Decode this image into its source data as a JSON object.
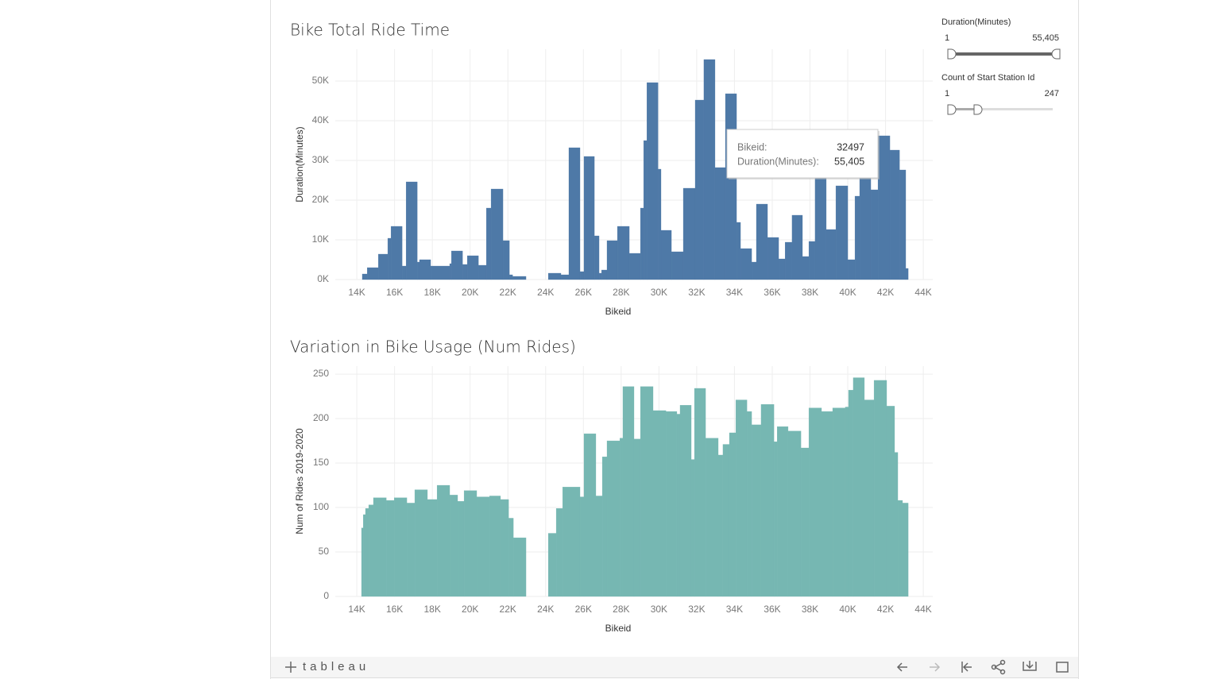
{
  "chart_data": [
    {
      "type": "histogram",
      "title": "Bike Total Ride Time",
      "x_label": "Bikeid",
      "y_label": "Duration(Minutes)",
      "color": "#4e79a7",
      "grid": true,
      "xlim": [
        12860,
        44500
      ],
      "xticks": [
        {
          "value": 14000,
          "label": "14K"
        },
        {
          "value": 16000,
          "label": "16K"
        },
        {
          "value": 18000,
          "label": "18K"
        },
        {
          "value": 20000,
          "label": "20K"
        },
        {
          "value": 22000,
          "label": "22K"
        },
        {
          "value": 24000,
          "label": "24K"
        },
        {
          "value": 26000,
          "label": "26K"
        },
        {
          "value": 28000,
          "label": "28K"
        },
        {
          "value": 30000,
          "label": "30K"
        },
        {
          "value": 32000,
          "label": "32K"
        },
        {
          "value": 34000,
          "label": "34K"
        },
        {
          "value": 36000,
          "label": "36K"
        },
        {
          "value": 38000,
          "label": "38K"
        },
        {
          "value": 40000,
          "label": "40K"
        },
        {
          "value": 42000,
          "label": "42K"
        },
        {
          "value": 44000,
          "label": "44K"
        }
      ],
      "ylim": [
        0,
        58000
      ],
      "yticks": [
        {
          "value": 0,
          "label": "0K"
        },
        {
          "value": 10000,
          "label": "10K"
        },
        {
          "value": 20000,
          "label": "20K"
        },
        {
          "value": 30000,
          "label": "30K"
        },
        {
          "value": 40000,
          "label": "40K"
        },
        {
          "value": 50000,
          "label": "50K"
        }
      ],
      "bins": [
        14290,
        14550,
        15140,
        15640,
        15810,
        16400,
        16610,
        17200,
        17320,
        17910,
        18920,
        19010,
        19600,
        19850,
        20440,
        20860,
        21110,
        21740,
        22080,
        22250,
        22960,
        24140,
        24810,
        25230,
        25820,
        26030,
        26580,
        26830,
        26960,
        27250,
        27800,
        28430,
        29020,
        29190,
        29360,
        29950,
        30110,
        30660,
        31290,
        31920,
        32380,
        32970,
        33520,
        34110,
        34320,
        34910,
        35160,
        35750,
        36340,
        36680,
        37050,
        37600,
        37940,
        38270,
        38860,
        39370,
        40000,
        40380,
        40630,
        41220,
        41600,
        42230,
        42740,
        43070,
        43200
      ],
      "values": [
        1400,
        3000,
        6400,
        10400,
        13400,
        3400,
        24600,
        4400,
        5000,
        3400,
        4000,
        7200,
        3800,
        6000,
        3600,
        18000,
        22800,
        9800,
        1200,
        800,
        null,
        1600,
        1200,
        33200,
        2000,
        31000,
        11000,
        1600,
        2400,
        9800,
        13400,
        6600,
        18000,
        35000,
        49600,
        27800,
        12400,
        7000,
        23000,
        45200,
        55405,
        28200,
        46800,
        14400,
        7800,
        4400,
        19000,
        10600,
        5200,
        9400,
        16200,
        5800,
        9600,
        28000,
        12600,
        23600,
        5000,
        21000,
        30400,
        22600,
        36200,
        32600,
        27600,
        2800
      ]
    },
    {
      "type": "histogram",
      "title": "Variation in Bike Usage (Num Rides)",
      "x_label": "Bikeid",
      "y_label": "Num of Rides 2019-2020",
      "color": "#76b7b2",
      "grid": true,
      "xlim": [
        12860,
        44500
      ],
      "xticks": [
        {
          "value": 14000,
          "label": "14K"
        },
        {
          "value": 16000,
          "label": "16K"
        },
        {
          "value": 18000,
          "label": "18K"
        },
        {
          "value": 20000,
          "label": "20K"
        },
        {
          "value": 22000,
          "label": "22K"
        },
        {
          "value": 24000,
          "label": "24K"
        },
        {
          "value": 26000,
          "label": "26K"
        },
        {
          "value": 28000,
          "label": "28K"
        },
        {
          "value": 30000,
          "label": "30K"
        },
        {
          "value": 32000,
          "label": "32K"
        },
        {
          "value": 34000,
          "label": "34K"
        },
        {
          "value": 36000,
          "label": "36K"
        },
        {
          "value": 38000,
          "label": "38K"
        },
        {
          "value": 40000,
          "label": "40K"
        },
        {
          "value": 42000,
          "label": "42K"
        },
        {
          "value": 44000,
          "label": "44K"
        }
      ],
      "ylim": [
        0,
        259
      ],
      "yticks": [
        0,
        50,
        100,
        150,
        200,
        250
      ],
      "bins": [
        14250,
        14340,
        14460,
        14630,
        14880,
        15560,
        15980,
        16650,
        17070,
        17740,
        18250,
        18920,
        19340,
        19680,
        20350,
        21030,
        21610,
        22040,
        22290,
        22960,
        24140,
        24560,
        24900,
        25820,
        26030,
        26660,
        27000,
        27250,
        27930,
        28090,
        28680,
        29020,
        29690,
        30370,
        30950,
        31120,
        31710,
        31880,
        32470,
        33140,
        33390,
        33730,
        34070,
        34660,
        34910,
        35410,
        36090,
        36260,
        36840,
        37520,
        37940,
        38610,
        39200,
        39870,
        40040,
        40290,
        40880,
        41390,
        42060,
        42480,
        42650,
        42900,
        43200
      ],
      "values": [
        77,
        92,
        99,
        103,
        111,
        108,
        111,
        105,
        120,
        109,
        125,
        114,
        107,
        119,
        112,
        113,
        109,
        88,
        66,
        null,
        71,
        99,
        123,
        112,
        183,
        113,
        157,
        175,
        178,
        236,
        177,
        236,
        209,
        208,
        205,
        215,
        154,
        234,
        178,
        159,
        171,
        184,
        221,
        208,
        193,
        216,
        174,
        191,
        186,
        167,
        212,
        208,
        212,
        213,
        232,
        246,
        221,
        243,
        214,
        162,
        108,
        105
      ]
    }
  ],
  "filters": [
    {
      "title": "Duration(Minutes)",
      "min": "1",
      "max": "55,405"
    },
    {
      "title": "Count of Start Station Id",
      "min": "1",
      "max": "247"
    }
  ],
  "tooltip": {
    "rows": [
      {
        "label": "Bikeid:",
        "value": "32497"
      },
      {
        "label": "Duration(Minutes):",
        "value": "55,405"
      }
    ]
  },
  "footer": {
    "logo": "tableau"
  }
}
